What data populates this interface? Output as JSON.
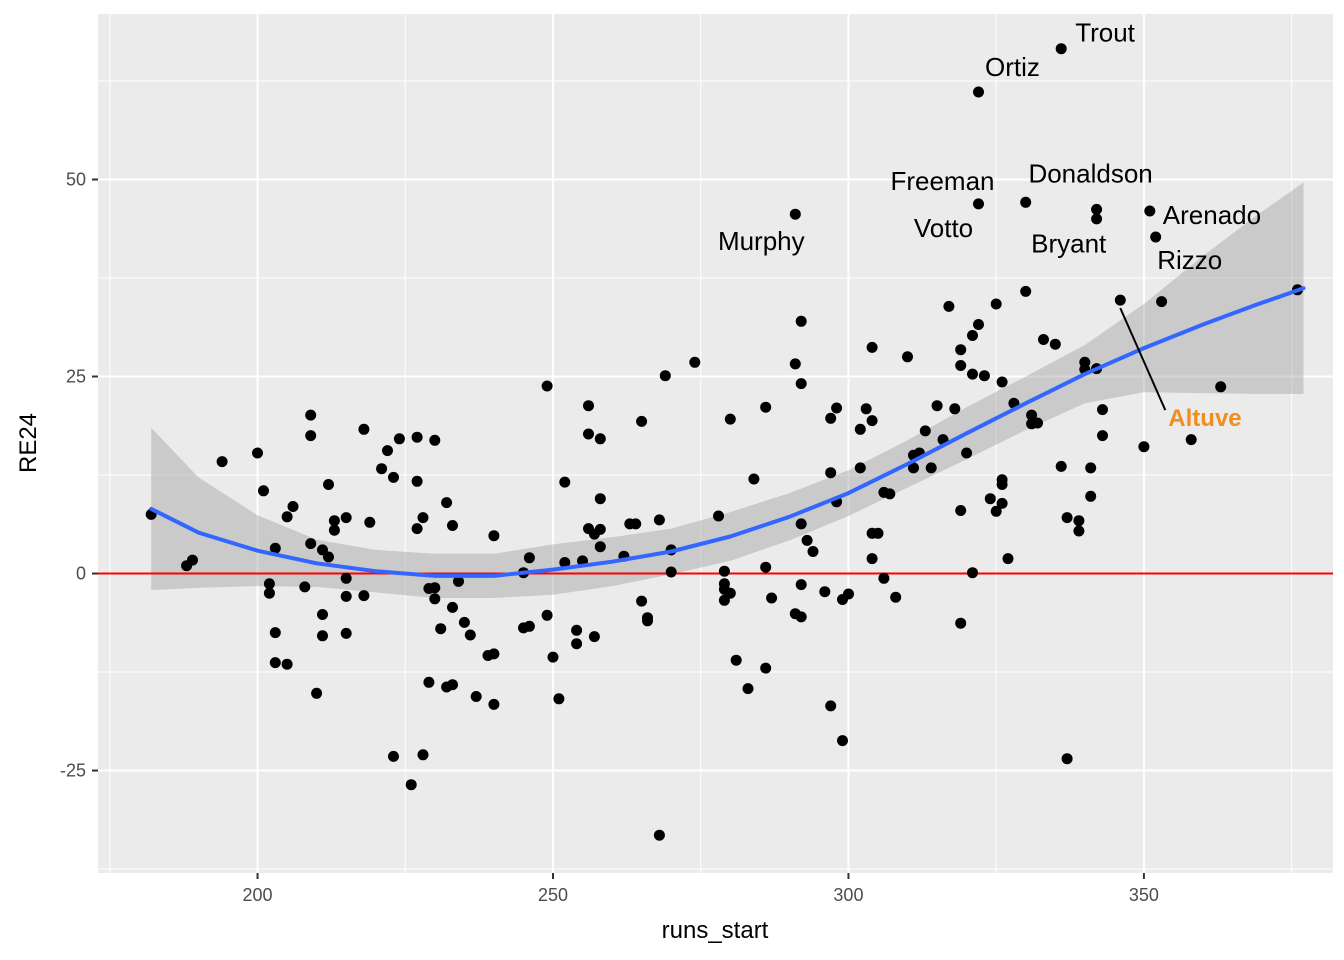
{
  "chart_data": {
    "type": "scatter",
    "xlabel": "runs_start",
    "ylabel": "RE24",
    "xlim": [
      173,
      382
    ],
    "ylim": [
      -38,
      71
    ],
    "x_ticks": [
      200,
      250,
      300,
      350
    ],
    "x_tick_labels": [
      "200",
      "250",
      "300",
      "350"
    ],
    "y_ticks": [
      -25,
      0,
      25,
      50
    ],
    "y_tick_labels": [
      "-25",
      "0",
      "25",
      "50"
    ],
    "grid": true,
    "panel_background": "#ebebeb",
    "colors": {
      "point": "#000000",
      "smooth_line": "#3366ff",
      "confidence_band": "#bdbdbd",
      "reference_line": "#ff0000",
      "highlight": "#f28e1e"
    },
    "reference_line_y": 0,
    "smooth": {
      "method": "loess",
      "x": [
        182,
        190,
        200,
        210,
        220,
        230,
        240,
        250,
        260,
        270,
        280,
        290,
        300,
        310,
        320,
        330,
        340,
        350,
        360,
        369,
        377
      ],
      "y": [
        8.2,
        5.2,
        2.9,
        1.3,
        0.3,
        -0.3,
        -0.3,
        0.5,
        1.5,
        2.8,
        4.7,
        7.2,
        10.2,
        13.9,
        17.8,
        21.6,
        25.3,
        28.6,
        31.6,
        34.1,
        36.2
      ],
      "lower": [
        -2.1,
        -1.8,
        -1.6,
        -1.7,
        -2.4,
        -3.1,
        -3.1,
        -2.7,
        -1.6,
        -0.1,
        1.6,
        4.2,
        7.3,
        10.9,
        14.5,
        18.2,
        21.6,
        23.0,
        22.9,
        22.8,
        22.8
      ],
      "upper": [
        18.5,
        12.2,
        7.4,
        4.3,
        3.0,
        2.5,
        2.5,
        3.7,
        4.6,
        5.7,
        7.8,
        10.2,
        13.1,
        16.9,
        21.1,
        25.0,
        29.0,
        34.2,
        40.3,
        45.4,
        49.6
      ]
    },
    "points": [
      {
        "x": 182,
        "y": 7.5
      },
      {
        "x": 188,
        "y": 1.0
      },
      {
        "x": 189,
        "y": 1.7
      },
      {
        "x": 194,
        "y": 14.2
      },
      {
        "x": 200,
        "y": 15.3
      },
      {
        "x": 201,
        "y": 10.5
      },
      {
        "x": 202,
        "y": -2.5
      },
      {
        "x": 202,
        "y": -1.3
      },
      {
        "x": 203,
        "y": -7.5
      },
      {
        "x": 203,
        "y": -11.3
      },
      {
        "x": 203,
        "y": 3.2
      },
      {
        "x": 205,
        "y": -11.5
      },
      {
        "x": 205,
        "y": 7.2
      },
      {
        "x": 206,
        "y": 8.5
      },
      {
        "x": 208,
        "y": -1.7
      },
      {
        "x": 209,
        "y": 20.1
      },
      {
        "x": 209,
        "y": 17.5
      },
      {
        "x": 209,
        "y": 3.8
      },
      {
        "x": 210,
        "y": -15.2
      },
      {
        "x": 211,
        "y": -5.2
      },
      {
        "x": 211,
        "y": -7.9
      },
      {
        "x": 211,
        "y": 3.0
      },
      {
        "x": 212,
        "y": 11.3
      },
      {
        "x": 212,
        "y": 2.1
      },
      {
        "x": 213,
        "y": 6.7
      },
      {
        "x": 213,
        "y": 5.5
      },
      {
        "x": 215,
        "y": -0.6
      },
      {
        "x": 215,
        "y": -2.9
      },
      {
        "x": 215,
        "y": -7.6
      },
      {
        "x": 215,
        "y": 7.1
      },
      {
        "x": 218,
        "y": 18.3
      },
      {
        "x": 218,
        "y": -2.8
      },
      {
        "x": 219,
        "y": 6.5
      },
      {
        "x": 221,
        "y": 13.3
      },
      {
        "x": 222,
        "y": 15.6
      },
      {
        "x": 223,
        "y": -23.2
      },
      {
        "x": 223,
        "y": 12.2
      },
      {
        "x": 224,
        "y": 17.1
      },
      {
        "x": 226,
        "y": -26.8
      },
      {
        "x": 227,
        "y": 17.3
      },
      {
        "x": 227,
        "y": 11.7
      },
      {
        "x": 227,
        "y": 5.7
      },
      {
        "x": 228,
        "y": -23.0
      },
      {
        "x": 228,
        "y": 7.1
      },
      {
        "x": 229,
        "y": -13.8
      },
      {
        "x": 229,
        "y": -1.9
      },
      {
        "x": 230,
        "y": -1.8
      },
      {
        "x": 230,
        "y": 16.9
      },
      {
        "x": 230,
        "y": -3.2
      },
      {
        "x": 231,
        "y": -7.0
      },
      {
        "x": 232,
        "y": 9.0
      },
      {
        "x": 232,
        "y": -14.4
      },
      {
        "x": 233,
        "y": -14.1
      },
      {
        "x": 233,
        "y": -4.3
      },
      {
        "x": 233,
        "y": 6.1
      },
      {
        "x": 234,
        "y": -1.0
      },
      {
        "x": 235,
        "y": -6.2
      },
      {
        "x": 236,
        "y": -7.8
      },
      {
        "x": 237,
        "y": -15.6
      },
      {
        "x": 239,
        "y": -10.4
      },
      {
        "x": 240,
        "y": -10.2
      },
      {
        "x": 240,
        "y": -16.6
      },
      {
        "x": 240,
        "y": 4.8
      },
      {
        "x": 245,
        "y": 0.1
      },
      {
        "x": 245,
        "y": -6.9
      },
      {
        "x": 246,
        "y": -6.7
      },
      {
        "x": 246,
        "y": 2.0
      },
      {
        "x": 249,
        "y": -5.3
      },
      {
        "x": 249,
        "y": 23.8
      },
      {
        "x": 250,
        "y": -10.6
      },
      {
        "x": 251,
        "y": -15.9
      },
      {
        "x": 252,
        "y": 1.4
      },
      {
        "x": 252,
        "y": 11.6
      },
      {
        "x": 254,
        "y": -7.2
      },
      {
        "x": 254,
        "y": -8.9
      },
      {
        "x": 255,
        "y": 1.6
      },
      {
        "x": 256,
        "y": 21.3
      },
      {
        "x": 256,
        "y": 5.7
      },
      {
        "x": 256,
        "y": 17.7
      },
      {
        "x": 257,
        "y": 5.0
      },
      {
        "x": 257,
        "y": -8.0
      },
      {
        "x": 258,
        "y": 5.6
      },
      {
        "x": 258,
        "y": 9.5
      },
      {
        "x": 258,
        "y": 17.1
      },
      {
        "x": 258,
        "y": 3.4
      },
      {
        "x": 262,
        "y": 2.2
      },
      {
        "x": 263,
        "y": 6.3
      },
      {
        "x": 264,
        "y": 6.3
      },
      {
        "x": 265,
        "y": -3.5
      },
      {
        "x": 265,
        "y": 19.3
      },
      {
        "x": 266,
        "y": -5.6
      },
      {
        "x": 266,
        "y": -6.0
      },
      {
        "x": 268,
        "y": -33.2
      },
      {
        "x": 268,
        "y": 6.8
      },
      {
        "x": 269,
        "y": 25.1
      },
      {
        "x": 270,
        "y": 0.2
      },
      {
        "x": 270,
        "y": 3.0
      },
      {
        "x": 274,
        "y": 26.8
      },
      {
        "x": 278,
        "y": 7.3
      },
      {
        "x": 279,
        "y": 0.3
      },
      {
        "x": 279,
        "y": -1.3
      },
      {
        "x": 279,
        "y": -2.0
      },
      {
        "x": 279,
        "y": -3.4
      },
      {
        "x": 280,
        "y": -2.5
      },
      {
        "x": 280,
        "y": 19.6
      },
      {
        "x": 281,
        "y": -11.0
      },
      {
        "x": 283,
        "y": -14.6
      },
      {
        "x": 284,
        "y": 12.0
      },
      {
        "x": 286,
        "y": -12.0
      },
      {
        "x": 286,
        "y": 21.1
      },
      {
        "x": 286,
        "y": 0.8
      },
      {
        "x": 287,
        "y": -3.1
      },
      {
        "x": 291,
        "y": 26.6
      },
      {
        "x": 291,
        "y": -5.1
      },
      {
        "x": 291,
        "y": 45.6
      },
      {
        "x": 292,
        "y": 24.1
      },
      {
        "x": 292,
        "y": 6.3
      },
      {
        "x": 292,
        "y": 32.0
      },
      {
        "x": 292,
        "y": -1.4
      },
      {
        "x": 292,
        "y": -5.5
      },
      {
        "x": 293,
        "y": 4.2
      },
      {
        "x": 294,
        "y": 2.8
      },
      {
        "x": 296,
        "y": -2.3
      },
      {
        "x": 297,
        "y": 19.7
      },
      {
        "x": 297,
        "y": 12.8
      },
      {
        "x": 297,
        "y": -16.8
      },
      {
        "x": 298,
        "y": 21.0
      },
      {
        "x": 298,
        "y": 9.1
      },
      {
        "x": 299,
        "y": -21.2
      },
      {
        "x": 299,
        "y": -3.3
      },
      {
        "x": 300,
        "y": -2.6
      },
      {
        "x": 302,
        "y": 18.3
      },
      {
        "x": 302,
        "y": 13.4
      },
      {
        "x": 303,
        "y": 20.9
      },
      {
        "x": 304,
        "y": 28.7
      },
      {
        "x": 304,
        "y": 19.4
      },
      {
        "x": 304,
        "y": 1.9
      },
      {
        "x": 304,
        "y": 5.1
      },
      {
        "x": 305,
        "y": 5.1
      },
      {
        "x": 306,
        "y": 10.3
      },
      {
        "x": 306,
        "y": -0.6
      },
      {
        "x": 307,
        "y": 10.1
      },
      {
        "x": 308,
        "y": -3.0
      },
      {
        "x": 310,
        "y": 27.5
      },
      {
        "x": 311,
        "y": 13.4
      },
      {
        "x": 311,
        "y": 15.0
      },
      {
        "x": 312,
        "y": 15.3
      },
      {
        "x": 313,
        "y": 18.1
      },
      {
        "x": 314,
        "y": 13.4
      },
      {
        "x": 315,
        "y": 21.3
      },
      {
        "x": 316,
        "y": 17.0
      },
      {
        "x": 317,
        "y": 33.9
      },
      {
        "x": 318,
        "y": 20.9
      },
      {
        "x": 319,
        "y": 8.0
      },
      {
        "x": 319,
        "y": -6.3
      },
      {
        "x": 319,
        "y": 26.4
      },
      {
        "x": 319,
        "y": 28.4
      },
      {
        "x": 320,
        "y": 15.3
      },
      {
        "x": 321,
        "y": 0.1
      },
      {
        "x": 321,
        "y": 25.3
      },
      {
        "x": 321,
        "y": 30.2
      },
      {
        "x": 322,
        "y": 31.6
      },
      {
        "x": 322,
        "y": 46.9
      },
      {
        "x": 322,
        "y": 61.1
      },
      {
        "x": 323,
        "y": 25.1
      },
      {
        "x": 324,
        "y": 9.5
      },
      {
        "x": 325,
        "y": 7.9
      },
      {
        "x": 325,
        "y": 34.2
      },
      {
        "x": 326,
        "y": 24.3
      },
      {
        "x": 326,
        "y": 11.9
      },
      {
        "x": 326,
        "y": 8.9
      },
      {
        "x": 326,
        "y": 11.3
      },
      {
        "x": 327,
        "y": 1.9
      },
      {
        "x": 328,
        "y": 21.6
      },
      {
        "x": 330,
        "y": 47.1
      },
      {
        "x": 330,
        "y": 35.8
      },
      {
        "x": 331,
        "y": 19.0
      },
      {
        "x": 331,
        "y": 20.1
      },
      {
        "x": 332,
        "y": 19.1
      },
      {
        "x": 333,
        "y": 29.7
      },
      {
        "x": 335,
        "y": 29.1
      },
      {
        "x": 336,
        "y": 66.6
      },
      {
        "x": 336,
        "y": 13.6
      },
      {
        "x": 337,
        "y": -23.5
      },
      {
        "x": 337,
        "y": 7.1
      },
      {
        "x": 339,
        "y": 6.7
      },
      {
        "x": 339,
        "y": 5.4
      },
      {
        "x": 340,
        "y": 26.8
      },
      {
        "x": 340,
        "y": 25.9
      },
      {
        "x": 341,
        "y": 13.4
      },
      {
        "x": 341,
        "y": 9.8
      },
      {
        "x": 342,
        "y": 46.2
      },
      {
        "x": 342,
        "y": 45.0
      },
      {
        "x": 342,
        "y": 26.0
      },
      {
        "x": 343,
        "y": 17.5
      },
      {
        "x": 343,
        "y": 20.8
      },
      {
        "x": 346,
        "y": 34.7
      },
      {
        "x": 350,
        "y": 16.1
      },
      {
        "x": 351,
        "y": 46.0
      },
      {
        "x": 352,
        "y": 42.7
      },
      {
        "x": 353,
        "y": 34.5
      },
      {
        "x": 358,
        "y": 17.0
      },
      {
        "x": 363,
        "y": 23.7
      },
      {
        "x": 376,
        "y": 36.0
      }
    ],
    "labels": [
      {
        "text": "Trout",
        "x": 336,
        "y": 66.6
      },
      {
        "text": "Ortiz",
        "x": 322,
        "y": 61.1
      },
      {
        "text": "Freeman",
        "x": 322,
        "y": 46.9
      },
      {
        "text": "Donaldson",
        "x": 342,
        "y": 46.2
      },
      {
        "text": "Votto",
        "x": 322,
        "y": 46.9
      },
      {
        "text": "Murphy",
        "x": 291,
        "y": 45.6
      },
      {
        "text": "Arenado",
        "x": 351,
        "y": 46.0
      },
      {
        "text": "Bryant",
        "x": 330,
        "y": 47.1
      },
      {
        "text": "Rizzo",
        "x": 352,
        "y": 42.7
      }
    ],
    "highlight_label": {
      "text": "Altuve",
      "x": 346,
      "y": 34.7
    }
  }
}
